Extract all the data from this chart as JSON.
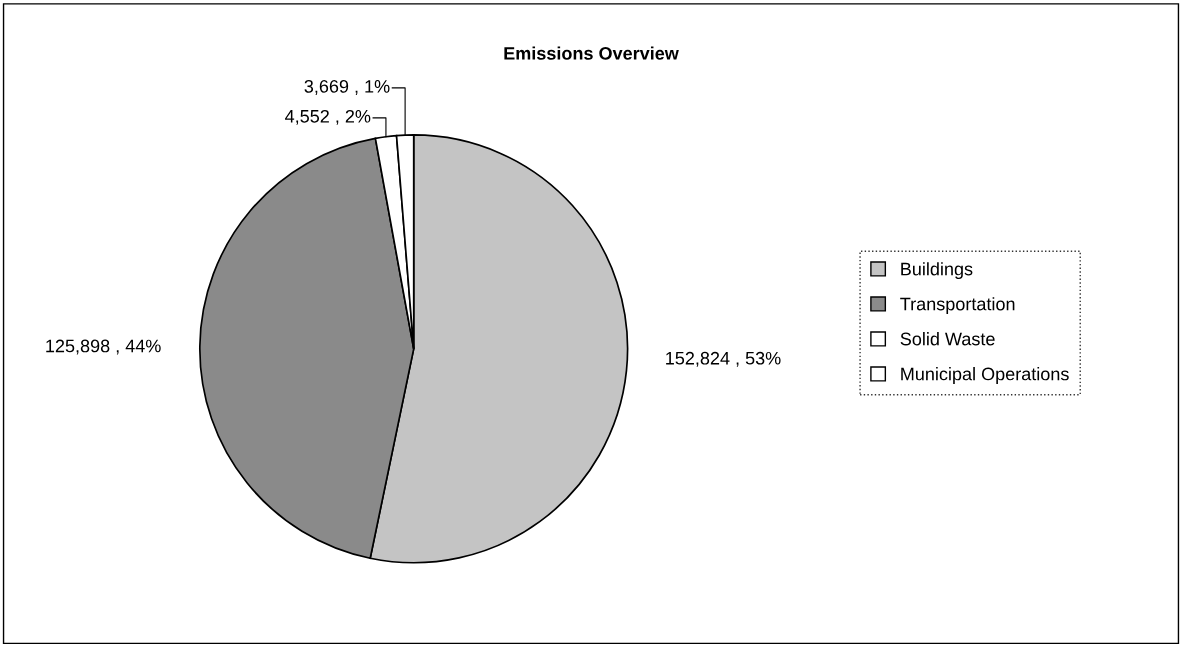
{
  "chart_data": {
    "type": "pie",
    "title": "Emissions Overview",
    "categories": [
      "Buildings",
      "Transportation",
      "Solid Waste",
      "Municipal Operations"
    ],
    "values": [
      152824,
      125898,
      4552,
      3669
    ],
    "value_labels": [
      "152,824 , 53%",
      "125,898 , 44%",
      "4,552 , 2%",
      "3,669 , 1%"
    ],
    "colors": [
      "#c4c4c4",
      "#8a8a8a",
      "#ffffff",
      "#ffffff"
    ],
    "legend": "right"
  }
}
